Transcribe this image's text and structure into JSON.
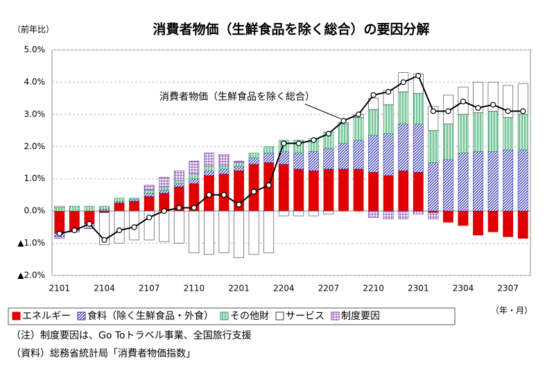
{
  "chart_data": {
    "type": "bar",
    "stacked": true,
    "title": "消費者物価（生鮮食品を除く総合）の要因分解",
    "y_label": "（前年比）",
    "x_label": "（年・月）",
    "categories": [
      "2101",
      null,
      null,
      "2104",
      null,
      null,
      "2107",
      null,
      null,
      "2110",
      null,
      null,
      "2201",
      null,
      null,
      "2204",
      null,
      null,
      "2207",
      null,
      null,
      "2210",
      null,
      null,
      "2301",
      null,
      null,
      "2304",
      null,
      null,
      "2307",
      null
    ],
    "series": [
      {
        "name": "エネルギー",
        "color": "#e00000",
        "pattern": "solid",
        "values": [
          -0.7,
          -0.6,
          -0.4,
          -0.05,
          0.25,
          0.3,
          0.45,
          0.55,
          0.75,
          0.85,
          1.1,
          1.15,
          1.25,
          1.45,
          1.5,
          1.45,
          1.3,
          1.25,
          1.3,
          1.3,
          1.3,
          1.2,
          1.1,
          1.25,
          1.2,
          -0.05,
          -0.35,
          -0.45,
          -0.75,
          -0.65,
          -0.8,
          -0.85
        ]
      },
      {
        "name": "食料（除く生鮮食品・外食）",
        "color": "#3030b0",
        "pattern": "diagonal",
        "values": [
          -0.1,
          -0.05,
          -0.05,
          0.05,
          0.05,
          0.05,
          0.1,
          0.1,
          0.1,
          0.15,
          0.15,
          0.15,
          0.15,
          0.2,
          0.3,
          0.4,
          0.5,
          0.6,
          0.65,
          0.8,
          0.9,
          1.15,
          1.3,
          1.45,
          1.5,
          1.5,
          1.6,
          1.8,
          1.85,
          1.85,
          1.9,
          1.9
        ]
      },
      {
        "name": "その他財",
        "color": "#2a9a5a",
        "pattern": "vertical",
        "values": [
          0.1,
          0.15,
          0.15,
          0.1,
          0.1,
          0.05,
          0.1,
          0.1,
          0.1,
          0.15,
          0.15,
          0.1,
          0.1,
          0.15,
          0.2,
          0.35,
          0.4,
          0.4,
          0.5,
          0.6,
          0.7,
          0.8,
          0.9,
          1.0,
          0.95,
          1.0,
          1.1,
          1.2,
          1.2,
          1.25,
          1.0,
          1.1
        ]
      },
      {
        "name": "サービス",
        "color": "#ffffff",
        "pattern": "none",
        "values": [
          0.05,
          0,
          0,
          -1.0,
          -1.0,
          -0.9,
          -0.9,
          -0.95,
          -1.0,
          -1.3,
          -1.35,
          -1.3,
          -1.45,
          -1.35,
          -1.3,
          -0.15,
          -0.15,
          -0.15,
          -0.1,
          0.05,
          0.1,
          0.35,
          0.45,
          0.6,
          0.6,
          0.75,
          0.9,
          0.85,
          0.95,
          0.9,
          1.0,
          0.95
        ]
      },
      {
        "name": "制度要因",
        "color": "#7030a0",
        "pattern": "grid",
        "values": [
          -0.05,
          0,
          -0.1,
          0,
          0,
          0,
          0.15,
          0.3,
          0.3,
          0.4,
          0.4,
          0.35,
          0.05,
          0,
          0,
          0,
          0,
          0,
          0,
          0,
          0,
          -0.2,
          -0.25,
          -0.25,
          -0.1,
          -0.2,
          0,
          0,
          0,
          0,
          0,
          0
        ]
      }
    ],
    "line": {
      "name": "消費者物価（生鮮食品を除く総合）",
      "color": "#000000",
      "values": [
        -0.7,
        -0.6,
        -0.4,
        -0.9,
        -0.6,
        -0.5,
        -0.2,
        0.0,
        0.1,
        0.1,
        0.5,
        0.5,
        0.2,
        0.6,
        0.8,
        2.1,
        2.1,
        2.2,
        2.4,
        2.8,
        3.0,
        3.6,
        3.7,
        4.0,
        4.2,
        3.1,
        3.1,
        3.4,
        3.2,
        3.3,
        3.1,
        3.1
      ]
    },
    "ylim": [
      -2,
      5
    ],
    "yticks": [
      {
        "value": -2,
        "label": "▲2.0%"
      },
      {
        "value": -1,
        "label": "▲1.0%"
      },
      {
        "value": 0,
        "label": "0.0%"
      },
      {
        "value": 1,
        "label": "1.0%"
      },
      {
        "value": 2,
        "label": "2.0%"
      },
      {
        "value": 3,
        "label": "3.0%"
      },
      {
        "value": 4,
        "label": "4.0%"
      },
      {
        "value": 5,
        "label": "5.0%"
      }
    ],
    "grid": true,
    "notes": [
      "（注）制度要因は、Go Toトラベル事業、全国旅行支援",
      "（資料）総務省統計局「消費者物価指数」"
    ]
  }
}
